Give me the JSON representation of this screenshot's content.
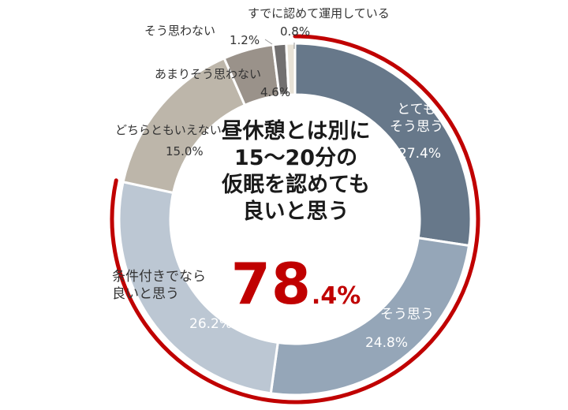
{
  "chart_data": {
    "type": "pie",
    "title": "",
    "slices": [
      {
        "label": "とても\nそう思う",
        "value": 27.4,
        "value_label": "27.4%",
        "color": "#67788a"
      },
      {
        "label": "そう思う",
        "value": 24.8,
        "value_label": "24.8%",
        "color": "#95a6b8"
      },
      {
        "label": "条件付きでなら\n良いと思う",
        "value": 26.2,
        "value_label": "26.2%",
        "color": "#bcc7d3"
      },
      {
        "label": "どちらともいえない",
        "value": 15.0,
        "value_label": "15.0%",
        "color": "#bdb6aa"
      },
      {
        "label": "あまりそう思わない",
        "value": 4.6,
        "value_label": "4.6%",
        "color": "#9a928a"
      },
      {
        "label": "そう思わない",
        "value": 1.2,
        "value_label": "1.2%",
        "color": "#727070"
      },
      {
        "label": "すでに認めて運用している",
        "value": 0.8,
        "value_label": "0.8%",
        "color": "#e8e2d6"
      }
    ],
    "highlight": {
      "value": 78.4,
      "color": "#c00000"
    }
  },
  "center": {
    "lines": [
      "昼休憩とは別に",
      "15～20分の",
      "仮眠を認めても",
      "良いと思う"
    ],
    "big_int": "78",
    "big_dec": ".4%"
  }
}
